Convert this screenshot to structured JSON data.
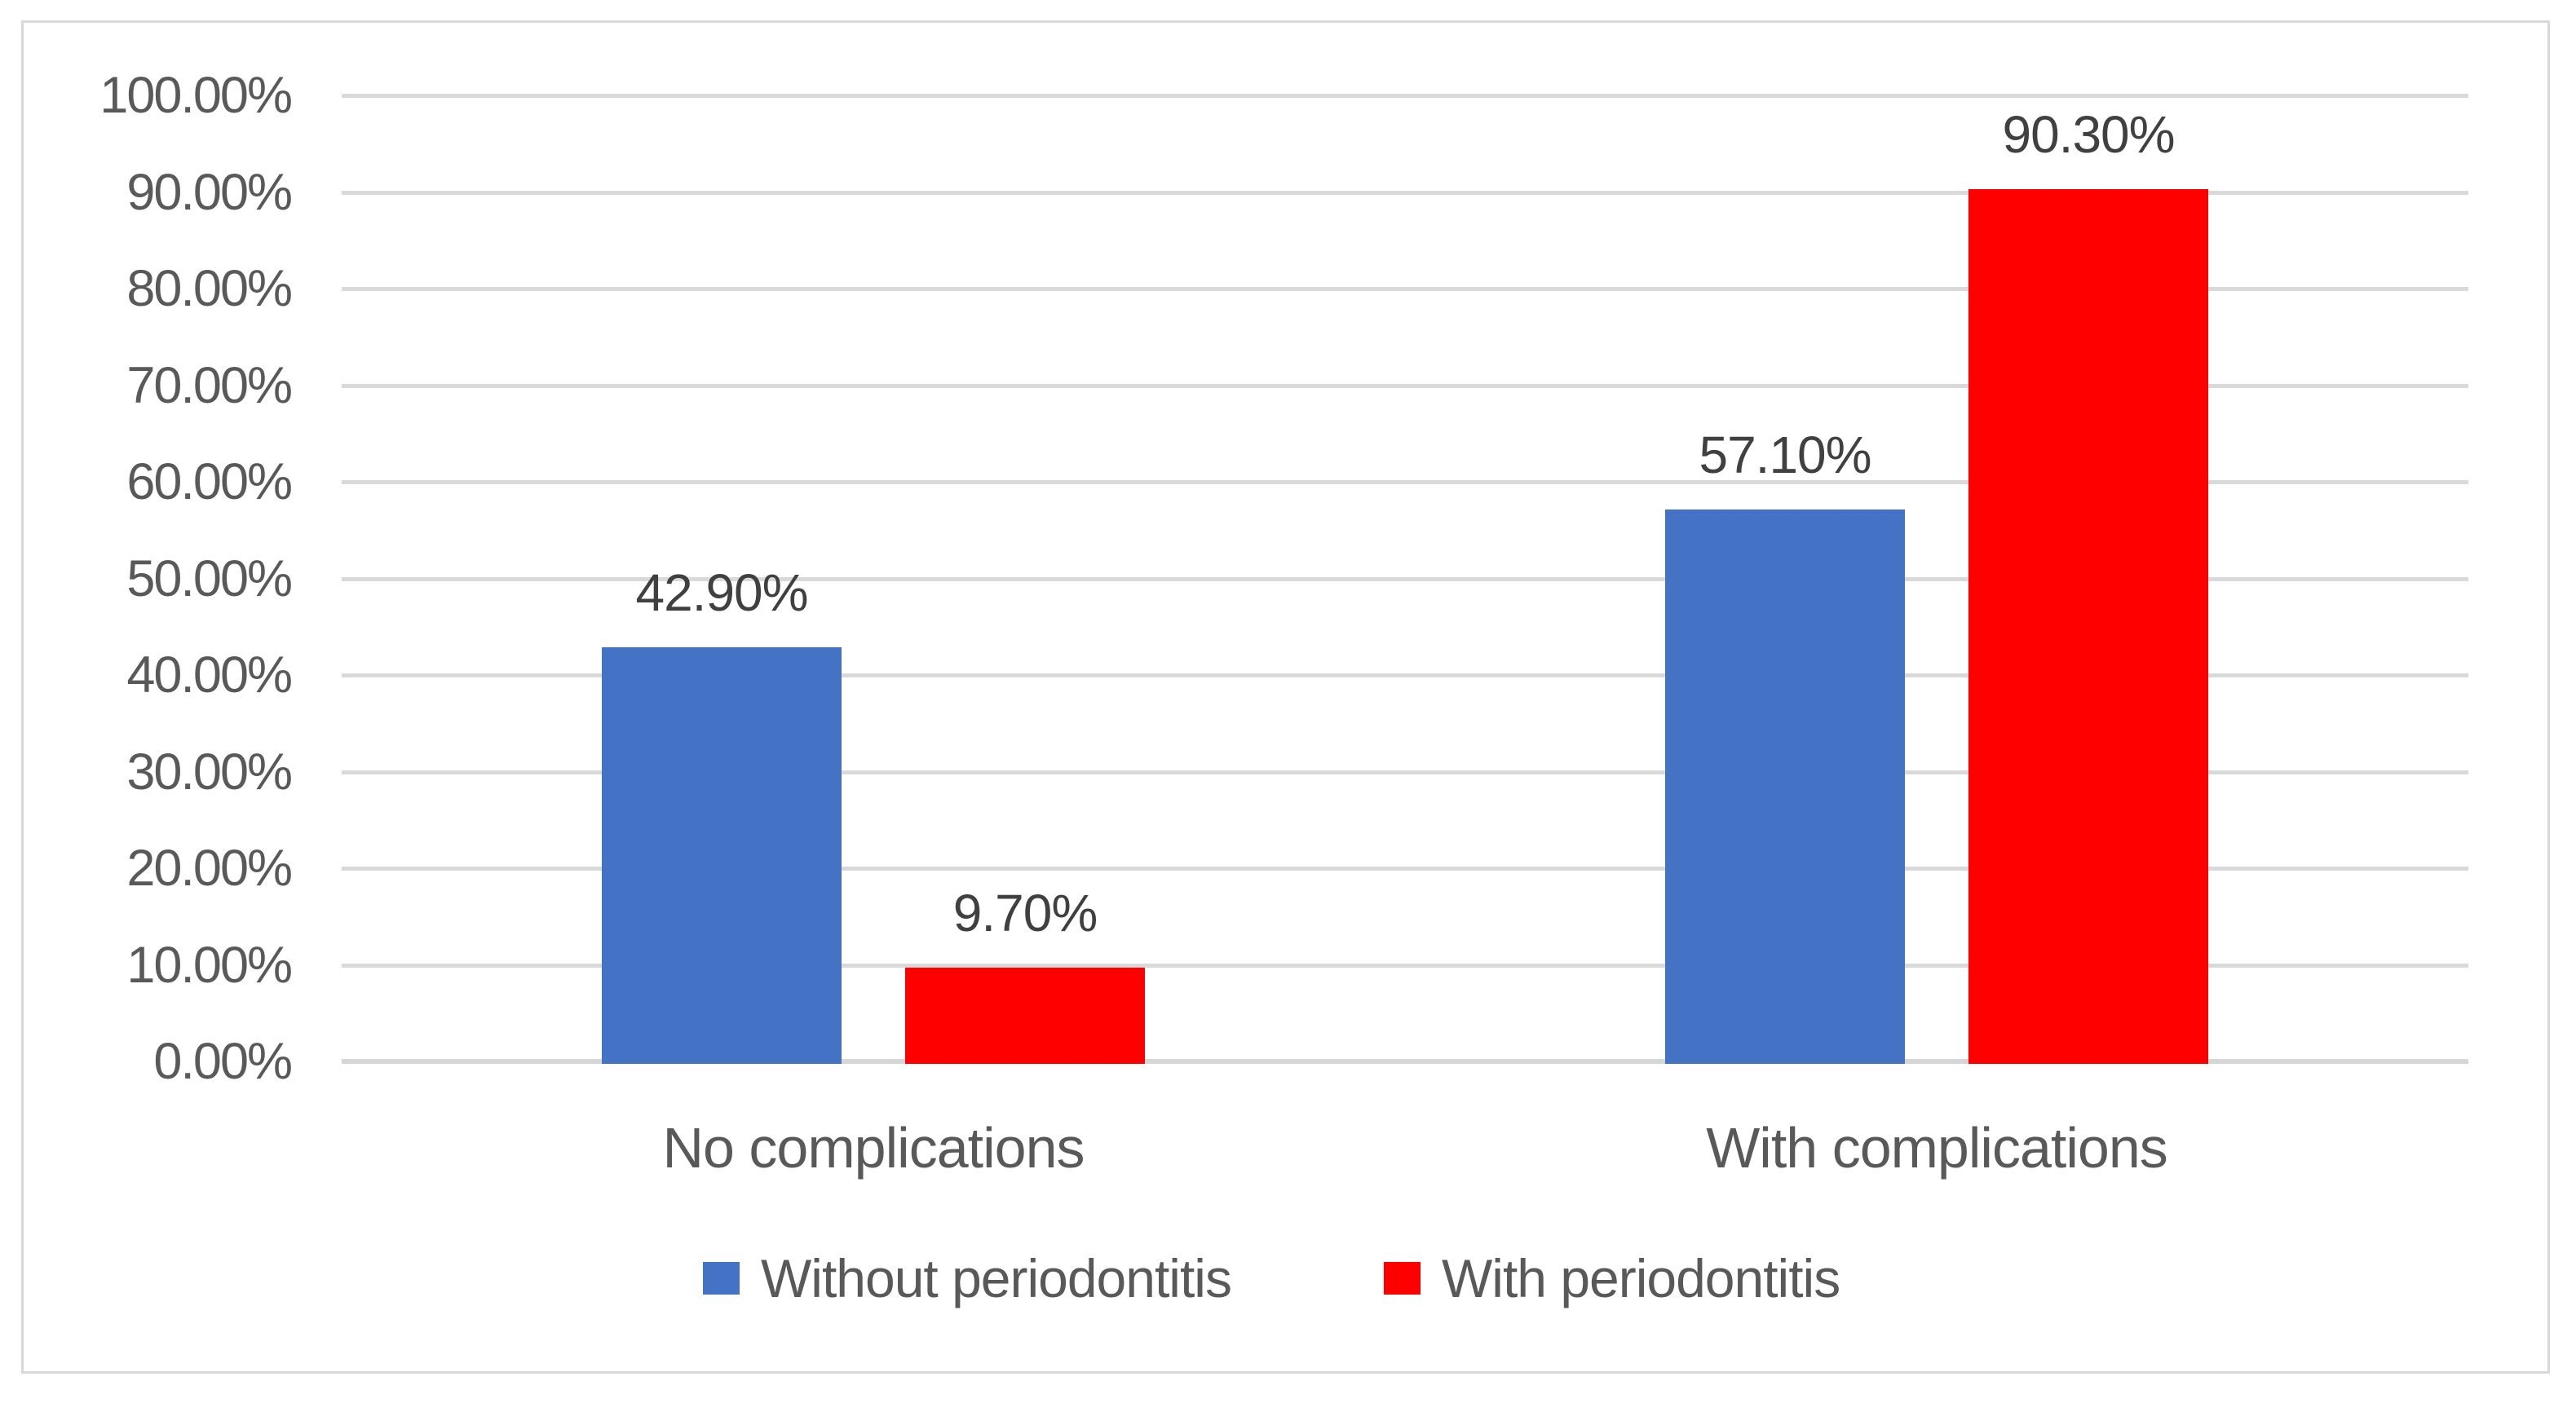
{
  "chart_data": {
    "type": "bar",
    "categories": [
      "No complications",
      "With complications"
    ],
    "series": [
      {
        "name": "Without periodontitis",
        "color": "#4472C4",
        "values": [
          42.9,
          57.1
        ],
        "labels": [
          "42.90%",
          "57.10%"
        ]
      },
      {
        "name": "With periodontitis",
        "color": "#FF0000",
        "values": [
          9.7,
          90.3
        ],
        "labels": [
          "9.70%",
          "90.30%"
        ]
      }
    ],
    "ylabel": "",
    "xlabel": "",
    "title": "",
    "ylim": [
      0,
      100
    ],
    "ytick_step": 10,
    "ytick_labels": [
      "0.00%",
      "10.00%",
      "20.00%",
      "30.00%",
      "40.00%",
      "50.00%",
      "60.00%",
      "70.00%",
      "80.00%",
      "90.00%",
      "100.00%"
    ],
    "grid": true,
    "legend_position": "bottom"
  },
  "colors": {
    "gridline": "#D9D9D9",
    "axis_line": "#D6D6D6",
    "frame_border": "#D9D9D9",
    "axis_text": "#595959",
    "data_label_text": "#404040",
    "background": "#FFFFFF"
  }
}
